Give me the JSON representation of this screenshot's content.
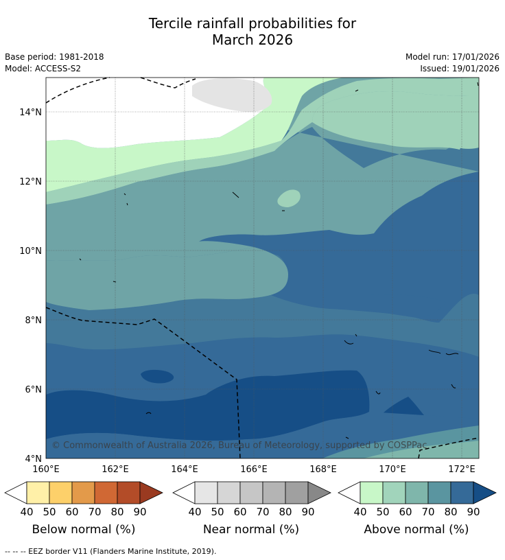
{
  "header": {
    "title_line1": "Tercile rainfall probabilities for",
    "title_line2": "March 2026",
    "base_period": "Base period: 1981-2018",
    "model": "Model: ACCESS-S2",
    "model_run": "Model run: 17/01/2026",
    "issued": "Issued: 19/01/2026"
  },
  "map": {
    "lat_labels": [
      "14°N",
      "12°N",
      "10°N",
      "8°N",
      "6°N",
      "4°N"
    ],
    "lon_labels": [
      "160°E",
      "162°E",
      "164°E",
      "166°E",
      "168°E",
      "170°E",
      "172°E"
    ],
    "copyright": "© Commonwealth of Australia 2026, Bureau of Meteorology, supported by COSPPac"
  },
  "colorbars": [
    {
      "title": "Below normal (%)",
      "ticks": [
        "40",
        "50",
        "60",
        "70",
        "80",
        "90"
      ],
      "colors": [
        "#fff0a8",
        "#fdd06a",
        "#e39a4a",
        "#d06834",
        "#b34c28",
        "#9a3a20"
      ],
      "under": "#ffffff",
      "over": "#9a3a20"
    },
    {
      "title": "Near normal (%)",
      "ticks": [
        "40",
        "50",
        "60",
        "70",
        "80",
        "90"
      ],
      "colors": [
        "#e6e6e6",
        "#d6d6d6",
        "#c6c6c6",
        "#b4b4b4",
        "#a0a0a0",
        "#888888"
      ],
      "under": "#ffffff",
      "over": "#888888"
    },
    {
      "title": "Above normal (%)",
      "ticks": [
        "40",
        "50",
        "60",
        "70",
        "80",
        "90"
      ],
      "colors": [
        "#c8f7c8",
        "#a1d4bb",
        "#7fb6ab",
        "#5a95a0",
        "#356a98",
        "#164e86"
      ],
      "under": "#ffffff",
      "over": "#164e86"
    }
  ],
  "footnote": "--  --  -- EEZ border V11 (Flanders Marine Institute, 2019)."
}
